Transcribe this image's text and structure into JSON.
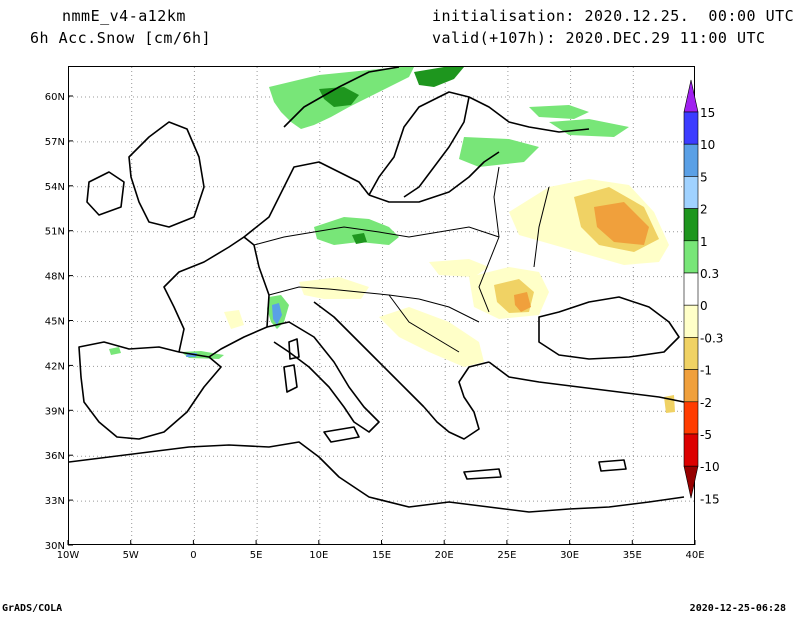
{
  "header": {
    "model": "nmmE_v4-a12km",
    "variable": "6h Acc.Snow [cm/6h]",
    "init_label": "initialisation:",
    "init_value": "2020.12.25.  00:00 UTC",
    "valid_label": "valid(+107h):",
    "valid_value": "2020.DEC.29 11:00 UTC"
  },
  "footer": {
    "credit": "GrADS/COLA",
    "timestamp": "2020-12-25-06:28"
  },
  "map": {
    "lon_range": [
      -10,
      40
    ],
    "lat_range": [
      30,
      62
    ],
    "lon_ticks": [
      "10W",
      "5W",
      "0",
      "5E",
      "10E",
      "15E",
      "20E",
      "25E",
      "30E",
      "35E",
      "40E"
    ],
    "lat_ticks": [
      "30N",
      "33N",
      "36N",
      "39N",
      "42N",
      "45N",
      "48N",
      "51N",
      "54N",
      "57N",
      "60N"
    ],
    "grid": "dotted"
  },
  "colorbar": {
    "labels": [
      "15",
      "10",
      "5",
      "2",
      "1",
      "0.3",
      "0",
      "-0.3",
      "-1",
      "-2",
      "-5",
      "-10",
      "-15"
    ],
    "colors": [
      "#a020f0",
      "#3c3cff",
      "#5aa0e6",
      "#a0d2ff",
      "#1e961e",
      "#78e678",
      "#ffffff",
      "#ffffc8",
      "#f0d264",
      "#f0a03c",
      "#ff3c00",
      "#dc0000",
      "#960000"
    ]
  }
}
